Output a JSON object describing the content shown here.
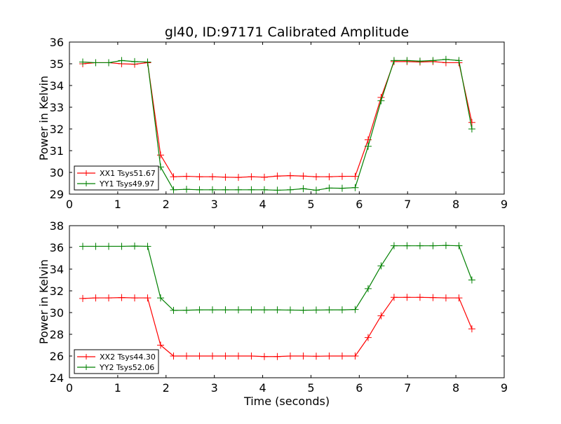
{
  "chart_data": [
    {
      "type": "line",
      "title": "gl40, ID:97171 Calibrated Amplitude",
      "xlabel": "",
      "ylabel": "Power in Kelvin",
      "xlim": [
        0,
        9
      ],
      "ylim": [
        29,
        36
      ],
      "xticks": [
        "0",
        "1",
        "2",
        "3",
        "4",
        "5",
        "6",
        "7",
        "8",
        "9"
      ],
      "yticks": [
        "29",
        "30",
        "31",
        "32",
        "33",
        "34",
        "35",
        "36"
      ],
      "legend_position": "lower-left",
      "x_start": 0.276,
      "x_step": 0.2685,
      "series": [
        {
          "name": "XX1 Tsys51.67",
          "color": "#ff0000",
          "values": [
            35.0,
            35.05,
            35.05,
            35.0,
            34.98,
            35.05,
            30.8,
            29.8,
            29.82,
            29.8,
            29.8,
            29.78,
            29.77,
            29.8,
            29.78,
            29.83,
            29.85,
            29.83,
            29.8,
            29.8,
            29.82,
            29.82,
            31.5,
            33.45,
            35.1,
            35.1,
            35.08,
            35.1,
            35.05,
            35.05,
            32.3
          ]
        },
        {
          "name": "YY1 Tsys49.97",
          "color": "#008000",
          "values": [
            35.08,
            35.05,
            35.05,
            35.15,
            35.1,
            35.08,
            30.25,
            29.2,
            29.22,
            29.2,
            29.2,
            29.2,
            29.2,
            29.2,
            29.2,
            29.18,
            29.2,
            29.25,
            29.18,
            29.28,
            29.27,
            29.3,
            31.2,
            33.3,
            35.15,
            35.15,
            35.12,
            35.15,
            35.2,
            35.15,
            32.0
          ]
        }
      ]
    },
    {
      "type": "line",
      "title": "",
      "xlabel": "Time (seconds)",
      "ylabel": "Power in Kelvin",
      "xlim": [
        0,
        9
      ],
      "ylim": [
        24,
        38
      ],
      "xticks": [
        "0",
        "1",
        "2",
        "3",
        "4",
        "5",
        "6",
        "7",
        "8",
        "9"
      ],
      "yticks": [
        "24",
        "26",
        "28",
        "30",
        "32",
        "34",
        "36",
        "38"
      ],
      "legend_position": "lower-left",
      "x_start": 0.276,
      "x_step": 0.2685,
      "series": [
        {
          "name": "XX2 Tsys44.30",
          "color": "#ff0000",
          "values": [
            31.3,
            31.35,
            31.35,
            31.38,
            31.35,
            31.35,
            27.0,
            26.0,
            26.0,
            26.0,
            26.0,
            26.0,
            26.0,
            26.0,
            25.95,
            25.95,
            26.0,
            26.0,
            25.98,
            26.0,
            26.0,
            26.0,
            27.7,
            29.7,
            31.4,
            31.4,
            31.4,
            31.38,
            31.35,
            31.35,
            28.5
          ]
        },
        {
          "name": "YY2 Tsys52.06",
          "color": "#008000",
          "values": [
            36.1,
            36.1,
            36.1,
            36.1,
            36.12,
            36.1,
            31.35,
            30.2,
            30.22,
            30.25,
            30.25,
            30.25,
            30.25,
            30.25,
            30.25,
            30.25,
            30.23,
            30.22,
            30.23,
            30.25,
            30.25,
            30.28,
            32.2,
            34.3,
            36.15,
            36.15,
            36.15,
            36.15,
            36.18,
            36.15,
            33.0
          ]
        }
      ]
    }
  ]
}
